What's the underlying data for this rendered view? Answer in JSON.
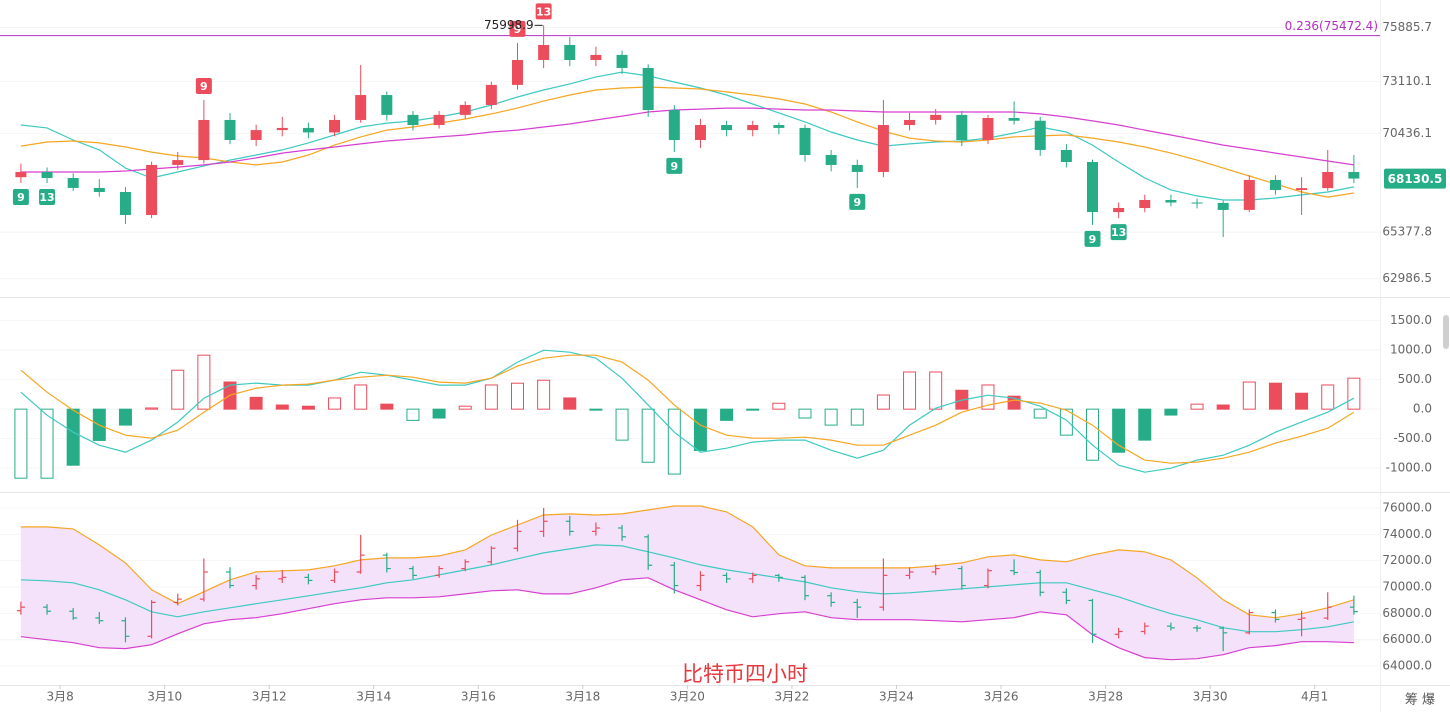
{
  "chart_data": [
    {
      "type": "candlestick",
      "xlim": [
        -0.8,
        52
      ],
      "ylim": [
        62100,
        77300
      ],
      "yticks": [
        75885.7,
        73110.1,
        70436.1,
        65377.8,
        62986.5
      ],
      "grid": true,
      "up_color": "#eb4d5c",
      "down_color": "#26ad88",
      "fib": {
        "value": 75472.4,
        "label": "0.236(75472.4)",
        "color": "#b42fc4"
      },
      "candles": [
        [
          68200,
          68900,
          67900,
          68470
        ],
        [
          68470,
          68700,
          67900,
          68160
        ],
        [
          68160,
          68400,
          67500,
          67650
        ],
        [
          67650,
          68100,
          67200,
          67440
        ],
        [
          67440,
          67700,
          65800,
          66260
        ],
        [
          66260,
          69000,
          66100,
          68830
        ],
        [
          68830,
          69500,
          68600,
          69080
        ],
        [
          69080,
          72165,
          68900,
          71140
        ],
        [
          71140,
          71500,
          69900,
          70110
        ],
        [
          70110,
          70900,
          69800,
          70620
        ],
        [
          70620,
          71300,
          70300,
          70730
        ],
        [
          70730,
          71000,
          70200,
          70500
        ],
        [
          70500,
          71400,
          70300,
          71140
        ],
        [
          71140,
          73960,
          71000,
          72420
        ],
        [
          72420,
          72600,
          71100,
          71400
        ],
        [
          71400,
          71600,
          70600,
          70880
        ],
        [
          70880,
          71600,
          70700,
          71400
        ],
        [
          71400,
          72100,
          71200,
          71910
        ],
        [
          71910,
          73100,
          71700,
          72940
        ],
        [
          72940,
          75100,
          72700,
          74220
        ],
        [
          74220,
          75998.9,
          73800,
          74990
        ],
        [
          74990,
          75400,
          73900,
          74220
        ],
        [
          74220,
          74900,
          73900,
          74480
        ],
        [
          74480,
          74700,
          73500,
          73810
        ],
        [
          73810,
          74000,
          71300,
          71650
        ],
        [
          71650,
          71900,
          69500,
          70110
        ],
        [
          70110,
          71200,
          69700,
          70880
        ],
        [
          70880,
          71100,
          70300,
          70620
        ],
        [
          70620,
          71100,
          70300,
          70880
        ],
        [
          70880,
          71000,
          70400,
          70730
        ],
        [
          70730,
          70900,
          69000,
          69340
        ],
        [
          69340,
          69600,
          68500,
          68830
        ],
        [
          68830,
          69100,
          67650,
          68470
        ],
        [
          68470,
          72165,
          68200,
          70880
        ],
        [
          70880,
          71500,
          70600,
          71140
        ],
        [
          71140,
          71700,
          70900,
          71400
        ],
        [
          71400,
          71600,
          69800,
          70110
        ],
        [
          70110,
          71400,
          69900,
          71240
        ],
        [
          71240,
          72100,
          70900,
          71100
        ],
        [
          71100,
          71300,
          69300,
          69600
        ],
        [
          69600,
          69900,
          68700,
          68980
        ],
        [
          68980,
          69100,
          65750,
          66410
        ],
        [
          66410,
          66900,
          66100,
          66620
        ],
        [
          66620,
          67300,
          66400,
          67030
        ],
        [
          67030,
          67300,
          66700,
          66900
        ],
        [
          66900,
          67100,
          66600,
          66880
        ],
        [
          66880,
          67000,
          65130,
          66520
        ],
        [
          66520,
          68300,
          66400,
          68060
        ],
        [
          68060,
          68300,
          67300,
          67540
        ],
        [
          67540,
          68200,
          66260,
          67640
        ],
        [
          67640,
          69600,
          67500,
          68470
        ],
        [
          68470,
          69340,
          67900,
          68130.5
        ]
      ],
      "lines": [
        {
          "color": "#3ec9c1",
          "values": [
            70880,
            70730,
            70110,
            69600,
            68670,
            68160,
            68470,
            68780,
            69080,
            69340,
            69600,
            69960,
            70370,
            70780,
            70980,
            71090,
            71290,
            71550,
            71910,
            72320,
            72680,
            72990,
            73350,
            73600,
            73400,
            73090,
            72780,
            72420,
            71960,
            71500,
            71040,
            70520,
            70110,
            69800,
            69910,
            70010,
            70060,
            70210,
            70470,
            70780,
            70520,
            69850,
            68980,
            68160,
            67550,
            67240,
            67030,
            67030,
            67130,
            67290,
            67440,
            67700
          ]
        },
        {
          "color": "#f5a623",
          "values": [
            69800,
            70010,
            70060,
            69960,
            69750,
            69490,
            69290,
            69190,
            68980,
            68830,
            68980,
            69340,
            69850,
            70270,
            70620,
            70780,
            70980,
            71190,
            71450,
            71750,
            72110,
            72420,
            72680,
            72780,
            72830,
            72780,
            72730,
            72580,
            72420,
            72220,
            71960,
            71550,
            71040,
            70570,
            70210,
            70060,
            70010,
            70110,
            70270,
            70320,
            70370,
            70210,
            70010,
            69750,
            69440,
            69080,
            68670,
            68260,
            67850,
            67440,
            67180,
            67390
          ]
        },
        {
          "color": "#d63fd0",
          "values": [
            68470,
            68470,
            68470,
            68470,
            68520,
            68620,
            68720,
            68830,
            68980,
            69190,
            69440,
            69600,
            69750,
            69910,
            70060,
            70160,
            70270,
            70370,
            70520,
            70620,
            70780,
            70930,
            71140,
            71340,
            71550,
            71650,
            71700,
            71750,
            71750,
            71700,
            71650,
            71650,
            71600,
            71550,
            71550,
            71550,
            71550,
            71550,
            71550,
            71450,
            71290,
            71090,
            70880,
            70620,
            70370,
            70110,
            69850,
            69650,
            69440,
            69240,
            69030,
            68830
          ]
        }
      ],
      "markers": [
        {
          "index": 7,
          "text": "9",
          "side": "up"
        },
        {
          "index": 19,
          "text": "9",
          "side": "up"
        },
        {
          "index": 20,
          "text": "13",
          "side": "up"
        },
        {
          "index": 0,
          "text": "9",
          "side": "down"
        },
        {
          "index": 1,
          "text": "13",
          "side": "down"
        },
        {
          "index": 25,
          "text": "9",
          "side": "down"
        },
        {
          "index": 32,
          "text": "9",
          "side": "down"
        },
        {
          "index": 41,
          "text": "9",
          "side": "down"
        },
        {
          "index": 42,
          "text": "13",
          "side": "down"
        }
      ],
      "xticks": [
        {
          "value": 1.5,
          "label": "3月8"
        },
        {
          "value": 5.5,
          "label": "3月10"
        },
        {
          "value": 9.5,
          "label": "3月12"
        },
        {
          "value": 13.5,
          "label": "3月14"
        },
        {
          "value": 17.5,
          "label": "3月16"
        },
        {
          "value": 21.5,
          "label": "3月18"
        },
        {
          "value": 25.5,
          "label": "3月20"
        },
        {
          "value": 29.5,
          "label": "3月22"
        },
        {
          "value": 33.5,
          "label": "3月24"
        },
        {
          "value": 37.5,
          "label": "3月26"
        },
        {
          "value": 41.5,
          "label": "3月28"
        },
        {
          "value": 45.5,
          "label": "3月30"
        },
        {
          "value": 49.5,
          "label": "4月1"
        }
      ]
    },
    {
      "type": "macd",
      "ylim": [
        -1370,
        1850
      ],
      "yticks": [
        {
          "value": 1500,
          "label": "1500.0"
        },
        {
          "value": 1000,
          "label": "1000.0"
        },
        {
          "value": 500,
          "label": "500.0"
        },
        {
          "value": 0,
          "label": "0.0"
        },
        {
          "value": -500,
          "label": "-500.0"
        },
        {
          "value": -1000,
          "label": "-1000.0"
        }
      ],
      "up_color": "#eb4d5c",
      "down_color": "#26ad88",
      "histogram": [
        -1170,
        -1170,
        -950,
        -530,
        -270,
        20,
        660,
        915,
        460,
        200,
        70,
        50,
        190,
        410,
        85,
        -190,
        -150,
        50,
        410,
        440,
        490,
        190,
        -15,
        -525,
        -900,
        -1100,
        -700,
        -190,
        -15,
        100,
        -150,
        -270,
        -270,
        240,
        630,
        630,
        320,
        410,
        220,
        -150,
        -440,
        -865,
        -730,
        -525,
        -100,
        85,
        70,
        460,
        440,
        270,
        410,
        525
      ],
      "dif": {
        "color": "#3ec9c1",
        "values": [
          288,
          -102,
          -390,
          -610,
          -729,
          -525,
          -220,
          186,
          407,
          441,
          407,
          407,
          492,
          627,
          576,
          492,
          407,
          407,
          525,
          797,
          1000,
          966,
          864,
          525,
          68,
          -390,
          -729,
          -661,
          -559,
          -525,
          -525,
          -695,
          -831,
          -695,
          -271,
          17,
          153,
          237,
          186,
          51,
          -186,
          -610,
          -949,
          -1068,
          -1000,
          -864,
          -780,
          -610,
          -390,
          -220,
          -51,
          186
        ]
      },
      "dea": {
        "color": "#f5a623",
        "values": [
          661,
          288,
          -17,
          -271,
          -441,
          -492,
          -356,
          -51,
          237,
          356,
          407,
          424,
          492,
          542,
          576,
          542,
          458,
          441,
          525,
          729,
          864,
          915,
          915,
          797,
          492,
          68,
          -271,
          -441,
          -492,
          -492,
          -475,
          -525,
          -610,
          -610,
          -441,
          -271,
          -51,
          68,
          153,
          102,
          -17,
          -271,
          -610,
          -864,
          -915,
          -898,
          -831,
          -729,
          -576,
          -458,
          -322,
          -51
        ]
      }
    },
    {
      "type": "bollinger",
      "ylim": [
        62560,
        76985
      ],
      "yticks": [
        {
          "value": 76000,
          "label": "76000.0"
        },
        {
          "value": 74000,
          "label": "74000.0"
        },
        {
          "value": 72000,
          "label": "72000.0"
        },
        {
          "value": 70000,
          "label": "70000.0"
        },
        {
          "value": 68000,
          "label": "68000.0"
        },
        {
          "value": 66000,
          "label": "66000.0"
        },
        {
          "value": 64000,
          "label": "64000.0"
        }
      ],
      "fill_color": "#f4e2fa",
      "upper": {
        "color": "#f5a623",
        "values": [
          74560,
          74560,
          74410,
          73200,
          71830,
          69790,
          68730,
          69640,
          70550,
          71150,
          71230,
          71300,
          71610,
          72060,
          72210,
          72210,
          72360,
          72820,
          73950,
          74710,
          75470,
          75550,
          75470,
          75550,
          75850,
          76150,
          76150,
          75700,
          74560,
          72440,
          71610,
          71450,
          71450,
          71450,
          71450,
          71610,
          71830,
          72290,
          72440,
          72060,
          71910,
          72440,
          72820,
          72670,
          72060,
          70700,
          69030,
          67890,
          67670,
          67970,
          68420,
          69030
        ]
      },
      "middle": {
        "color": "#3ec9c1",
        "values": [
          70550,
          70470,
          70320,
          69790,
          69030,
          68120,
          67740,
          68120,
          68420,
          68730,
          69030,
          69330,
          69640,
          69940,
          70320,
          70550,
          70920,
          71300,
          71680,
          72140,
          72590,
          72890,
          73200,
          73120,
          72670,
          72210,
          71680,
          71300,
          71000,
          70700,
          70390,
          69940,
          69640,
          69480,
          69560,
          69710,
          69860,
          70010,
          70170,
          70320,
          70320,
          69790,
          69260,
          68580,
          67970,
          67510,
          66910,
          66610,
          66610,
          66760,
          66980,
          67360
        ]
      },
      "lower": {
        "color": "#d63fd0",
        "values": [
          66230,
          66000,
          65770,
          65390,
          65320,
          65620,
          66450,
          67210,
          67520,
          67670,
          67970,
          68350,
          68730,
          69030,
          69180,
          69180,
          69260,
          69480,
          69710,
          69790,
          69480,
          69480,
          69940,
          70550,
          70700,
          69790,
          69030,
          68270,
          67740,
          67970,
          68120,
          67670,
          67520,
          67520,
          67520,
          67440,
          67360,
          67520,
          67670,
          68120,
          67890,
          66380,
          65390,
          64640,
          64480,
          64560,
          64860,
          65390,
          65550,
          65850,
          65850,
          65770
        ]
      },
      "annotation": "比特币四小时",
      "watermark": "筹 爆"
    }
  ]
}
